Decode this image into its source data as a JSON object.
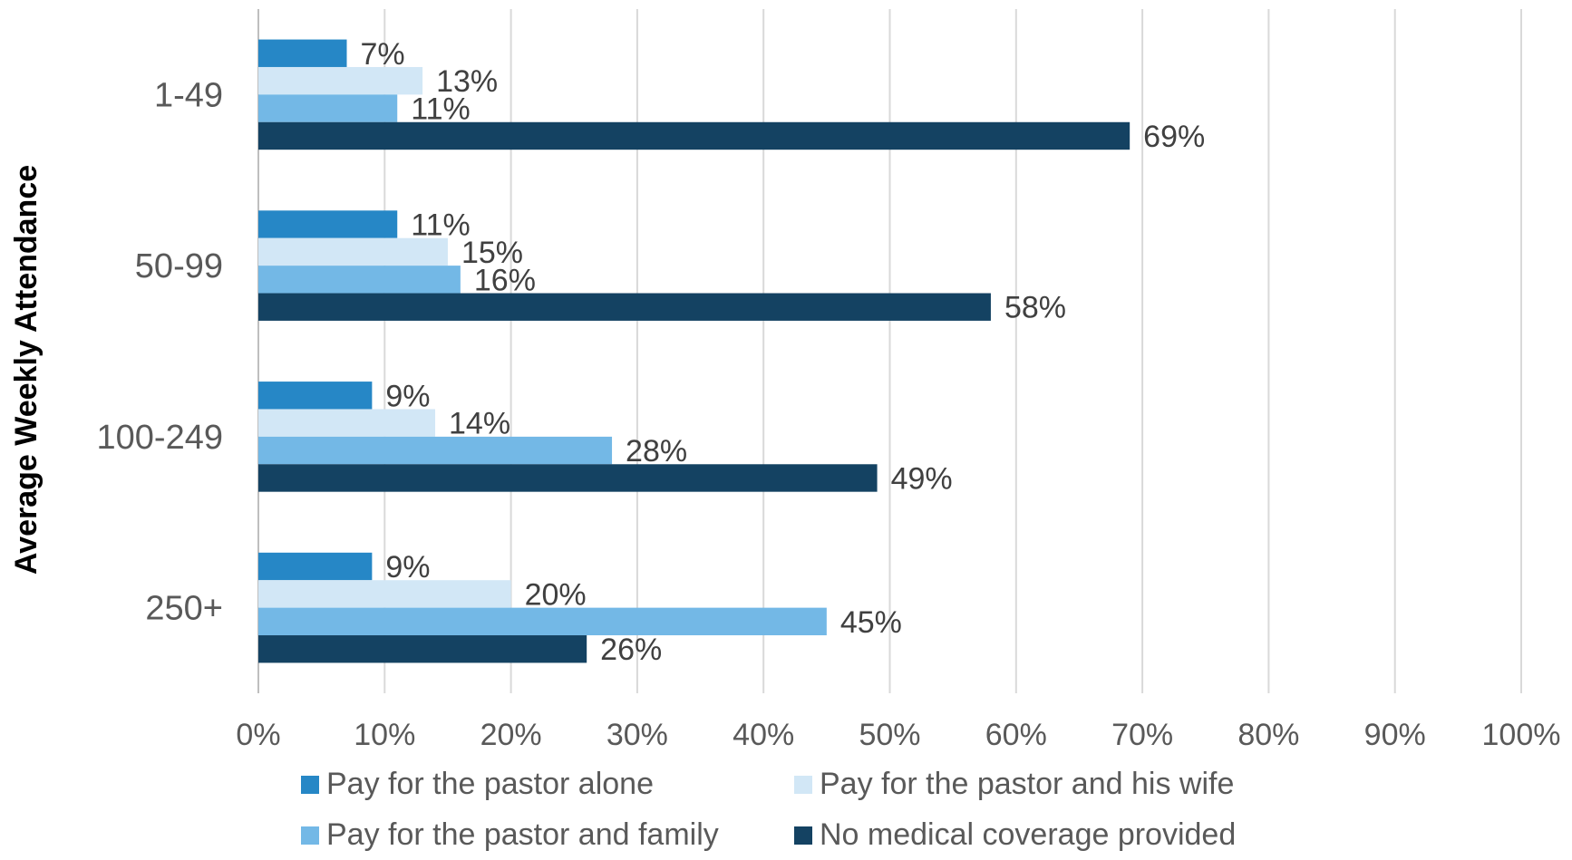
{
  "chart_data": {
    "type": "bar",
    "orientation": "horizontal",
    "ylabel": "Average Weekly Attendance",
    "xlabel": "",
    "title": "",
    "categories": [
      "1-49",
      "50-99",
      "100-249",
      "250+"
    ],
    "series": [
      {
        "name": "Pay for the pastor alone",
        "color": "#2687C6",
        "values": [
          7,
          11,
          9,
          9
        ],
        "labels": [
          "7%",
          "11%",
          "9%",
          "9%"
        ]
      },
      {
        "name": "Pay for the pastor and his wife",
        "color": "#D2E7F6",
        "values": [
          13,
          15,
          14,
          20
        ],
        "labels": [
          "13%",
          "15%",
          "14%",
          "20%"
        ]
      },
      {
        "name": "Pay for the pastor and family",
        "color": "#73B8E6",
        "values": [
          11,
          16,
          28,
          45
        ],
        "labels": [
          "11%",
          "16%",
          "28%",
          "45%"
        ]
      },
      {
        "name": "No medical coverage provided",
        "color": "#144262",
        "values": [
          69,
          58,
          49,
          26
        ],
        "labels": [
          "69%",
          "58%",
          "49%",
          "26%"
        ]
      }
    ],
    "xlim": [
      0,
      100
    ],
    "xticks": [
      0,
      10,
      20,
      30,
      40,
      50,
      60,
      70,
      80,
      90,
      100
    ],
    "xtick_labels": [
      "0%",
      "10%",
      "20%",
      "30%",
      "40%",
      "50%",
      "60%",
      "70%",
      "80%",
      "90%",
      "100%"
    ],
    "grid": "vertical",
    "legend_position": "bottom"
  }
}
